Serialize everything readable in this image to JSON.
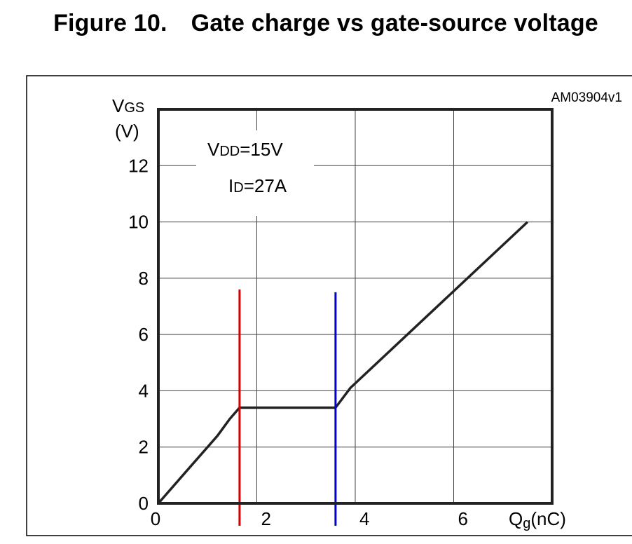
{
  "figure": {
    "number_label": "Figure 10.",
    "title": "Gate charge vs gate-source voltage",
    "code": "AM03904v1"
  },
  "conditions": {
    "vdd_prefix": "V",
    "vdd_sub": "DD",
    "vdd_value": "=15V",
    "id_prefix": "I",
    "id_sub": "D",
    "id_value": "=27A"
  },
  "chart_data": {
    "type": "line",
    "title": "Gate charge vs gate-source voltage",
    "ylabel": {
      "main": "V",
      "sub": "GS",
      "unit": "(V)"
    },
    "xlabel": {
      "main": "Q",
      "sub": "g",
      "unit": "(nC)"
    },
    "xlim": [
      0,
      8
    ],
    "ylim": [
      0,
      14
    ],
    "x_ticks": [
      0,
      2,
      4,
      6
    ],
    "y_ticks": [
      0,
      2,
      4,
      6,
      8,
      10,
      12
    ],
    "grid": true,
    "series": [
      {
        "color": "#222222",
        "points": [
          [
            0,
            0
          ],
          [
            0.6,
            1.2
          ],
          [
            1.2,
            2.4
          ],
          [
            1.45,
            3.0
          ],
          [
            1.65,
            3.4
          ],
          [
            3.6,
            3.4
          ],
          [
            3.9,
            4.1
          ],
          [
            7.5,
            10.0
          ]
        ]
      }
    ],
    "markers": [
      {
        "x": 1.65,
        "y_top": 7.6,
        "color": "#d40000"
      },
      {
        "x": 3.6,
        "y_top": 7.5,
        "color": "#0000d4"
      }
    ]
  }
}
